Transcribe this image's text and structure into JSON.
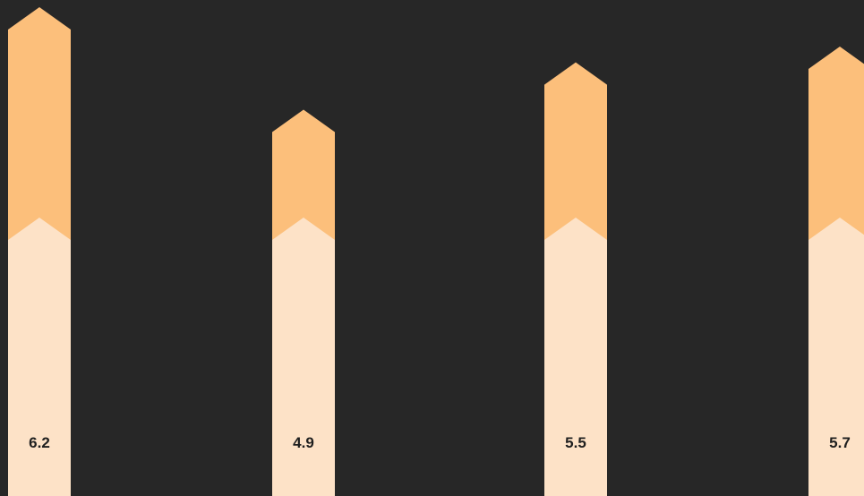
{
  "colors": {
    "background": "#272727",
    "bar_top": "#FCBF7B",
    "bar_bottom": "#FDE2C7",
    "label_text": "#1F1F1F"
  },
  "chart_data": {
    "type": "bar",
    "categories": [
      "",
      "",
      "",
      ""
    ],
    "values": [
      6.2,
      4.9,
      5.5,
      5.7
    ],
    "value_labels": [
      "6.2",
      "4.9",
      "5.5",
      "5.7"
    ],
    "ylim": [
      0,
      6.2
    ],
    "grid": false,
    "legend": "none"
  }
}
